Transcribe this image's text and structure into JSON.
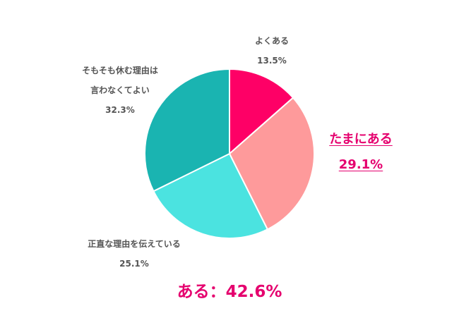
{
  "chart_data": {
    "type": "pie",
    "start_angle_deg": 0,
    "direction": "clockwise",
    "slices": [
      {
        "lines": [
          "よくある"
        ],
        "value": 13.5,
        "value_label": "13.5%",
        "color": "#fe0066"
      },
      {
        "lines": [
          "たまにある"
        ],
        "value": 29.1,
        "value_label": "29.1%",
        "color": "#fe9a9b",
        "highlight": true
      },
      {
        "lines": [
          "正直な理由を伝えている"
        ],
        "value": 25.1,
        "value_label": "25.1%",
        "color": "#4be3e0"
      },
      {
        "lines": [
          "そもそも休む理由は",
          "言わなくてよい"
        ],
        "value": 32.3,
        "value_label": "32.3%",
        "color": "#1ab4b1"
      }
    ],
    "summary": "ある：42.6%",
    "highlight_color": "#e5006e",
    "label_color": "#555555"
  }
}
